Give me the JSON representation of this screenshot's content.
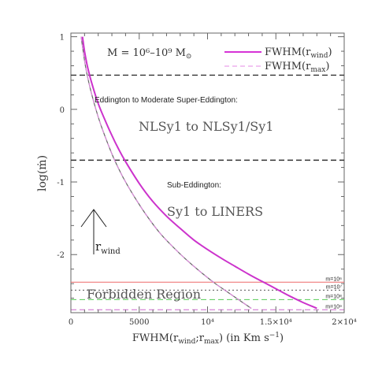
{
  "chart_data": {
    "type": "line",
    "title": "",
    "xlabel": "FWHM(r",
    "xlabel_sub": "wind",
    "xlabel_mid": ";r",
    "xlabel_sub2": "max",
    "xlabel_tail": ") (in Km s",
    "xlabel_sup": "−1",
    "xlabel_end": ")",
    "ylabel": "log(ṁ)",
    "xlim": [
      0,
      20000
    ],
    "ylim": [
      -2.8,
      1.05
    ],
    "x_ticks": [
      {
        "v": 0,
        "label": "0"
      },
      {
        "v": 5000,
        "label": "5000"
      },
      {
        "v": 10000,
        "label": "10⁴"
      },
      {
        "v": 15000,
        "label": "1.5×10⁴"
      },
      {
        "v": 20000,
        "label": "2×10⁴"
      }
    ],
    "y_ticks": [
      {
        "v": 1,
        "label": "1"
      },
      {
        "v": 0,
        "label": "0"
      },
      {
        "v": -1,
        "label": "-1"
      },
      {
        "v": -2,
        "label": "-2"
      }
    ],
    "mass_annotation": "M = 10⁶–10⁹ M",
    "mass_symbol": "⊙",
    "legend": {
      "placement": "top-right",
      "entries": [
        {
          "text": "FWHM(r",
          "sub": "wind",
          "tail": ")",
          "color": "#d633d6",
          "dash": "solid"
        },
        {
          "text": "FWHM(r",
          "sub": "max",
          "tail": ")",
          "color": "#e68ae6",
          "dash": "dashed"
        }
      ]
    },
    "series": [
      {
        "name": "FWHM(r_wind)",
        "color": "#cc33cc",
        "style": "solid",
        "x": [
          850,
          1000,
          1200,
          1500,
          2000,
          2500,
          3000,
          3500,
          4000,
          5000,
          6000,
          7000,
          8000,
          9000,
          10000,
          11000,
          12000,
          13000,
          14000,
          15000,
          16000,
          17000,
          18000
        ],
        "y": [
          1.0,
          0.8,
          0.6,
          0.38,
          0.08,
          -0.15,
          -0.36,
          -0.55,
          -0.72,
          -1.02,
          -1.27,
          -1.47,
          -1.64,
          -1.8,
          -1.93,
          -2.05,
          -2.16,
          -2.27,
          -2.37,
          -2.47,
          -2.57,
          -2.66,
          -2.74
        ]
      },
      {
        "name": "FWHM(r_max)",
        "color": "#d98cd9",
        "style": "dashed",
        "x": [
          750,
          900,
          1100,
          1400,
          1800,
          2200,
          2700,
          3200,
          3800,
          4500,
          5500,
          6500,
          7500,
          8500,
          9500,
          10500,
          11500,
          12500,
          13200
        ],
        "y": [
          1.0,
          0.8,
          0.56,
          0.3,
          0.02,
          -0.22,
          -0.47,
          -0.7,
          -0.93,
          -1.16,
          -1.45,
          -1.7,
          -1.9,
          -2.08,
          -2.24,
          -2.39,
          -2.52,
          -2.65,
          -2.74
        ]
      }
    ],
    "hlines": [
      {
        "y": 0.47,
        "color": "#333333",
        "style": "dashed"
      },
      {
        "y": -0.7,
        "color": "#333333",
        "style": "dashed"
      }
    ],
    "mass_lines": [
      {
        "y": -2.38,
        "color": "#ee6a6a",
        "style": "solid",
        "label": "m=10⁶"
      },
      {
        "y": -2.49,
        "color": "#555555",
        "style": "dotted",
        "label": "m=10⁷"
      },
      {
        "y": -2.62,
        "color": "#55cc55",
        "style": "dashed",
        "label": "m=10⁸"
      },
      {
        "y": -2.76,
        "color": "#cc66cc",
        "style": "dashed",
        "label": "m=10⁹"
      }
    ],
    "region_labels": {
      "eddington_title": "Eddington to Moderate Super-Eddington:",
      "eddington_class": "NLSy1 to NLSy1/Sy1",
      "sub_title": "Sub-Eddington:",
      "sub_class": "Sy1 to LINERS",
      "forbidden": "Forbidden Region"
    },
    "arrow_label": "r",
    "arrow_label_sub": "wind"
  }
}
